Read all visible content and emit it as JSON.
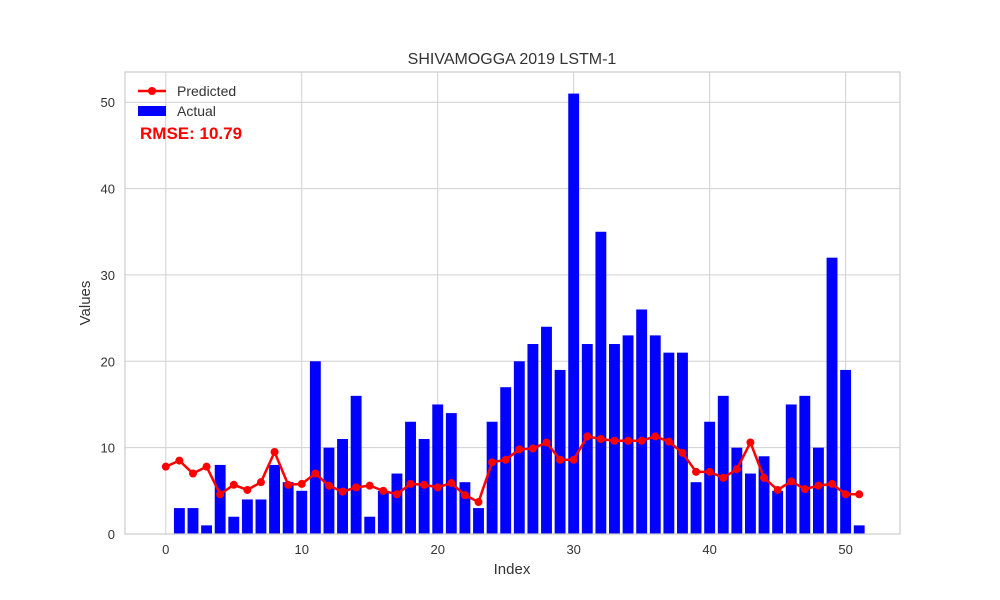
{
  "chart_data": {
    "type": "bar",
    "title": "SHIVAMOGGA 2019 LSTM-1",
    "xlabel": "Index",
    "ylabel": "Values",
    "xlim": [
      -3,
      54
    ],
    "ylim": [
      0,
      53.5
    ],
    "xticks": [
      0,
      10,
      20,
      30,
      40,
      50
    ],
    "yticks": [
      0,
      10,
      20,
      30,
      40,
      50
    ],
    "grid": true,
    "legend_position": "top-left",
    "colors": {
      "actual": "#0000ff",
      "predicted": "#ff0000",
      "grid": "#d0d0d0",
      "frame": "#cccccc"
    },
    "x": [
      0,
      1,
      2,
      3,
      4,
      5,
      6,
      7,
      8,
      9,
      10,
      11,
      12,
      13,
      14,
      15,
      16,
      17,
      18,
      19,
      20,
      21,
      22,
      23,
      24,
      25,
      26,
      27,
      28,
      29,
      30,
      31,
      32,
      33,
      34,
      35,
      36,
      37,
      38,
      39,
      40,
      41,
      42,
      43,
      44,
      45,
      46,
      47,
      48,
      49,
      50,
      51
    ],
    "series": [
      {
        "name": "Actual",
        "kind": "bar",
        "values": [
          0,
          3,
          3,
          1,
          8,
          2,
          4,
          4,
          8,
          6,
          5,
          20,
          10,
          11,
          16,
          2,
          5,
          7,
          13,
          11,
          15,
          14,
          6,
          3,
          13,
          17,
          20,
          22,
          24,
          19,
          51,
          22,
          35,
          22,
          23,
          26,
          23,
          21,
          21,
          6,
          13,
          16,
          10,
          7,
          9,
          5,
          15,
          16,
          10,
          32,
          19,
          1
        ]
      },
      {
        "name": "Predicted",
        "kind": "line",
        "values": [
          7.8,
          8.5,
          7.0,
          7.8,
          4.6,
          5.7,
          5.1,
          6.0,
          9.5,
          5.7,
          5.8,
          7.0,
          5.6,
          4.9,
          5.4,
          5.6,
          5.0,
          4.6,
          5.8,
          5.7,
          5.4,
          5.9,
          4.5,
          3.7,
          8.3,
          8.6,
          9.8,
          9.9,
          10.6,
          8.6,
          8.6,
          11.3,
          11.0,
          10.8,
          10.8,
          10.8,
          11.3,
          10.7,
          9.4,
          7.2,
          7.2,
          6.5,
          7.5,
          10.6,
          6.5,
          5.1,
          6.1,
          5.2,
          5.6,
          5.8,
          4.6,
          4.6
        ]
      }
    ],
    "annotations": [
      "RMSE: 10.79"
    ]
  }
}
